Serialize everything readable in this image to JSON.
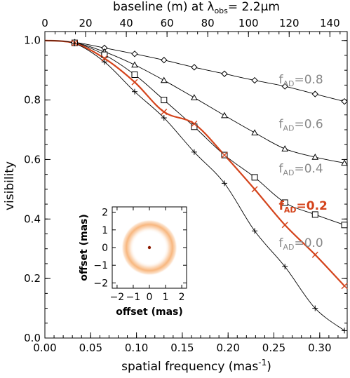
{
  "chart_data": {
    "type": "line",
    "xlabel_prefix": "spatial frequency (mas",
    "xlabel_sup": "-1",
    "xlabel_suffix": ")",
    "ylabel": "visibility",
    "top_label_prefix": "baseline (m) at λ",
    "top_label_sub": "obs",
    "top_label_suffix": "= 2.2μm",
    "xlim": [
      0.0,
      0.33
    ],
    "ylim": [
      0.0,
      1.03
    ],
    "x_ticks": [
      0.0,
      0.05,
      0.1,
      0.15,
      0.2,
      0.25,
      0.3
    ],
    "x_tick_labels": [
      "0.00",
      "0.05",
      "0.10",
      "0.15",
      "0.20",
      "0.25",
      "0.30"
    ],
    "y_ticks": [
      0.0,
      0.2,
      0.4,
      0.6,
      0.8,
      1.0
    ],
    "y_tick_labels": [
      "0.0",
      "0.2",
      "0.4",
      "0.6",
      "0.8",
      "1.0"
    ],
    "top_ticks": [
      0,
      20,
      40,
      60,
      80,
      100,
      120,
      140
    ],
    "top_tick_labels": [
      "0",
      "20",
      "40",
      "60",
      "80",
      "100",
      "120",
      "140"
    ],
    "top_xlim_m": [
      0,
      148.5
    ],
    "sample_x": [
      0.0325,
      0.065,
      0.098,
      0.13,
      0.163,
      0.196,
      0.229,
      0.262,
      0.295,
      0.327
    ],
    "highlight_color": "#d4441c",
    "label_gray": "#888888",
    "series": [
      {
        "name_main": "f",
        "name_sub": "AD",
        "name_value": "=0.8",
        "marker": "diamond",
        "highlight": false,
        "label_x": 0.24,
        "label_y": 0.87,
        "values": [
          1.0,
          0.998,
          0.986,
          0.969,
          0.949,
          0.928,
          0.906,
          0.885,
          0.866,
          0.848,
          0.832,
          0.815,
          0.805,
          0.796
        ],
        "x": [
          0.0,
          0.0325,
          0.048,
          0.065,
          0.081,
          0.098,
          0.114,
          0.13,
          0.147,
          0.163,
          0.179,
          0.196,
          0.212,
          0.229
        ],
        "markers_x": [
          0.0325,
          0.065,
          0.098,
          0.13,
          0.163,
          0.196,
          0.229,
          0.262,
          0.295,
          0.327
        ],
        "markers_y": [
          0.994,
          0.975,
          0.955,
          0.934,
          0.91,
          0.888,
          0.866,
          0.846,
          0.82,
          0.795
        ]
      },
      {
        "name_main": "f",
        "name_sub": "AD",
        "name_value": "=0.6",
        "marker": "triangle",
        "highlight": false,
        "label_x": 0.24,
        "label_y": 0.72,
        "markers_x": [
          0.0325,
          0.065,
          0.098,
          0.13,
          0.163,
          0.196,
          0.229,
          0.262,
          0.295,
          0.327
        ],
        "markers_y": [
          0.993,
          0.962,
          0.918,
          0.866,
          0.808,
          0.748,
          0.69,
          0.636,
          0.608,
          0.588
        ]
      },
      {
        "name_main": "f",
        "name_sub": "AD",
        "name_value": "=0.4",
        "marker": "square",
        "highlight": false,
        "label_x": 0.24,
        "label_y": 0.57,
        "markers_x": [
          0.0325,
          0.065,
          0.098,
          0.13,
          0.163,
          0.196,
          0.229,
          0.262,
          0.295,
          0.327
        ],
        "markers_y": [
          0.992,
          0.952,
          0.885,
          0.8,
          0.71,
          0.615,
          0.54,
          0.455,
          0.415,
          0.38
        ]
      },
      {
        "name_main": "f",
        "name_sub": "AD",
        "name_value": "=0.2",
        "marker": "cross",
        "highlight": true,
        "label_x": 0.24,
        "label_y": 0.445,
        "markers_x": [
          0.0325,
          0.065,
          0.098,
          0.13,
          0.163,
          0.196,
          0.229,
          0.262,
          0.295,
          0.327
        ],
        "markers_y": [
          0.991,
          0.94,
          0.86,
          0.76,
          0.72,
          0.615,
          0.5,
          0.38,
          0.28,
          0.175
        ]
      },
      {
        "name_main": "f",
        "name_sub": "AD",
        "name_value": "=0.0",
        "marker": "plus",
        "highlight": false,
        "label_x": 0.24,
        "label_y": 0.32,
        "markers_x": [
          0.0325,
          0.065,
          0.098,
          0.13,
          0.163,
          0.196,
          0.229,
          0.262,
          0.295,
          0.327
        ],
        "markers_y": [
          0.99,
          0.928,
          0.828,
          0.74,
          0.625,
          0.52,
          0.36,
          0.24,
          0.1,
          0.025
        ]
      }
    ],
    "inset": {
      "xlabel": "offset (mas)",
      "ylabel": "offset (mas)",
      "ticks": [
        -2,
        -1,
        0,
        1,
        2
      ],
      "tick_labels": [
        "−2",
        "−1",
        "0",
        "1",
        "2"
      ],
      "lim": [
        -2.3,
        2.3
      ],
      "ring_radius_mas": 1.4,
      "ring_color": "#f6a55f",
      "star_color": "#8b1a00"
    }
  }
}
